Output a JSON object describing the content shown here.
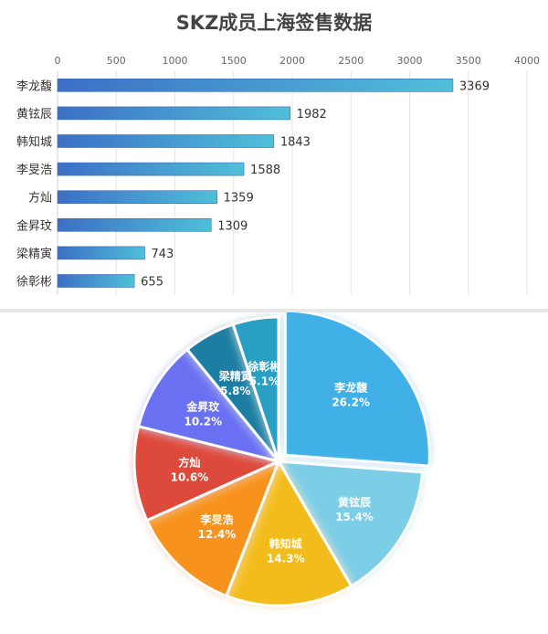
{
  "chart_data": [
    {
      "type": "bar",
      "orientation": "horizontal",
      "title": "SKZ成员上海签售数据",
      "categories": [
        "李龙馥",
        "黄铉辰",
        "韩知城",
        "李旻浩",
        "方灿",
        "金昇玟",
        "梁精寅",
        "徐彰彬"
      ],
      "values": [
        3369,
        1982,
        1843,
        1588,
        1359,
        1309,
        743,
        655
      ],
      "xlim": [
        0,
        4000
      ],
      "xticks": [
        "0",
        "500",
        "1000",
        "1500",
        "2000",
        "2500",
        "3000",
        "3500",
        "4000"
      ],
      "axis_position": "top",
      "grid": true,
      "bar_color_start": "#3c6fc6",
      "bar_color_end": "#4fc0d8"
    },
    {
      "type": "pie",
      "labels": [
        "李龙馥",
        "黄铉辰",
        "韩知城",
        "李旻浩",
        "方灿",
        "金昇玟",
        "梁精寅",
        "徐彰彬"
      ],
      "values": [
        26.2,
        15.4,
        14.3,
        12.4,
        10.6,
        10.2,
        5.8,
        5.1
      ],
      "value_labels": [
        "26.2%",
        "15.4%",
        "14.3%",
        "12.4%",
        "10.6%",
        "10.2%",
        "5.8%",
        "5.1%"
      ],
      "colors": [
        "#3fb0e6",
        "#7ccde6",
        "#f2bd1a",
        "#f7931e",
        "#dd4a3a",
        "#6b6ff2",
        "#1b7ea2",
        "#2a9fc4"
      ],
      "exploded": "李龙馥"
    }
  ]
}
